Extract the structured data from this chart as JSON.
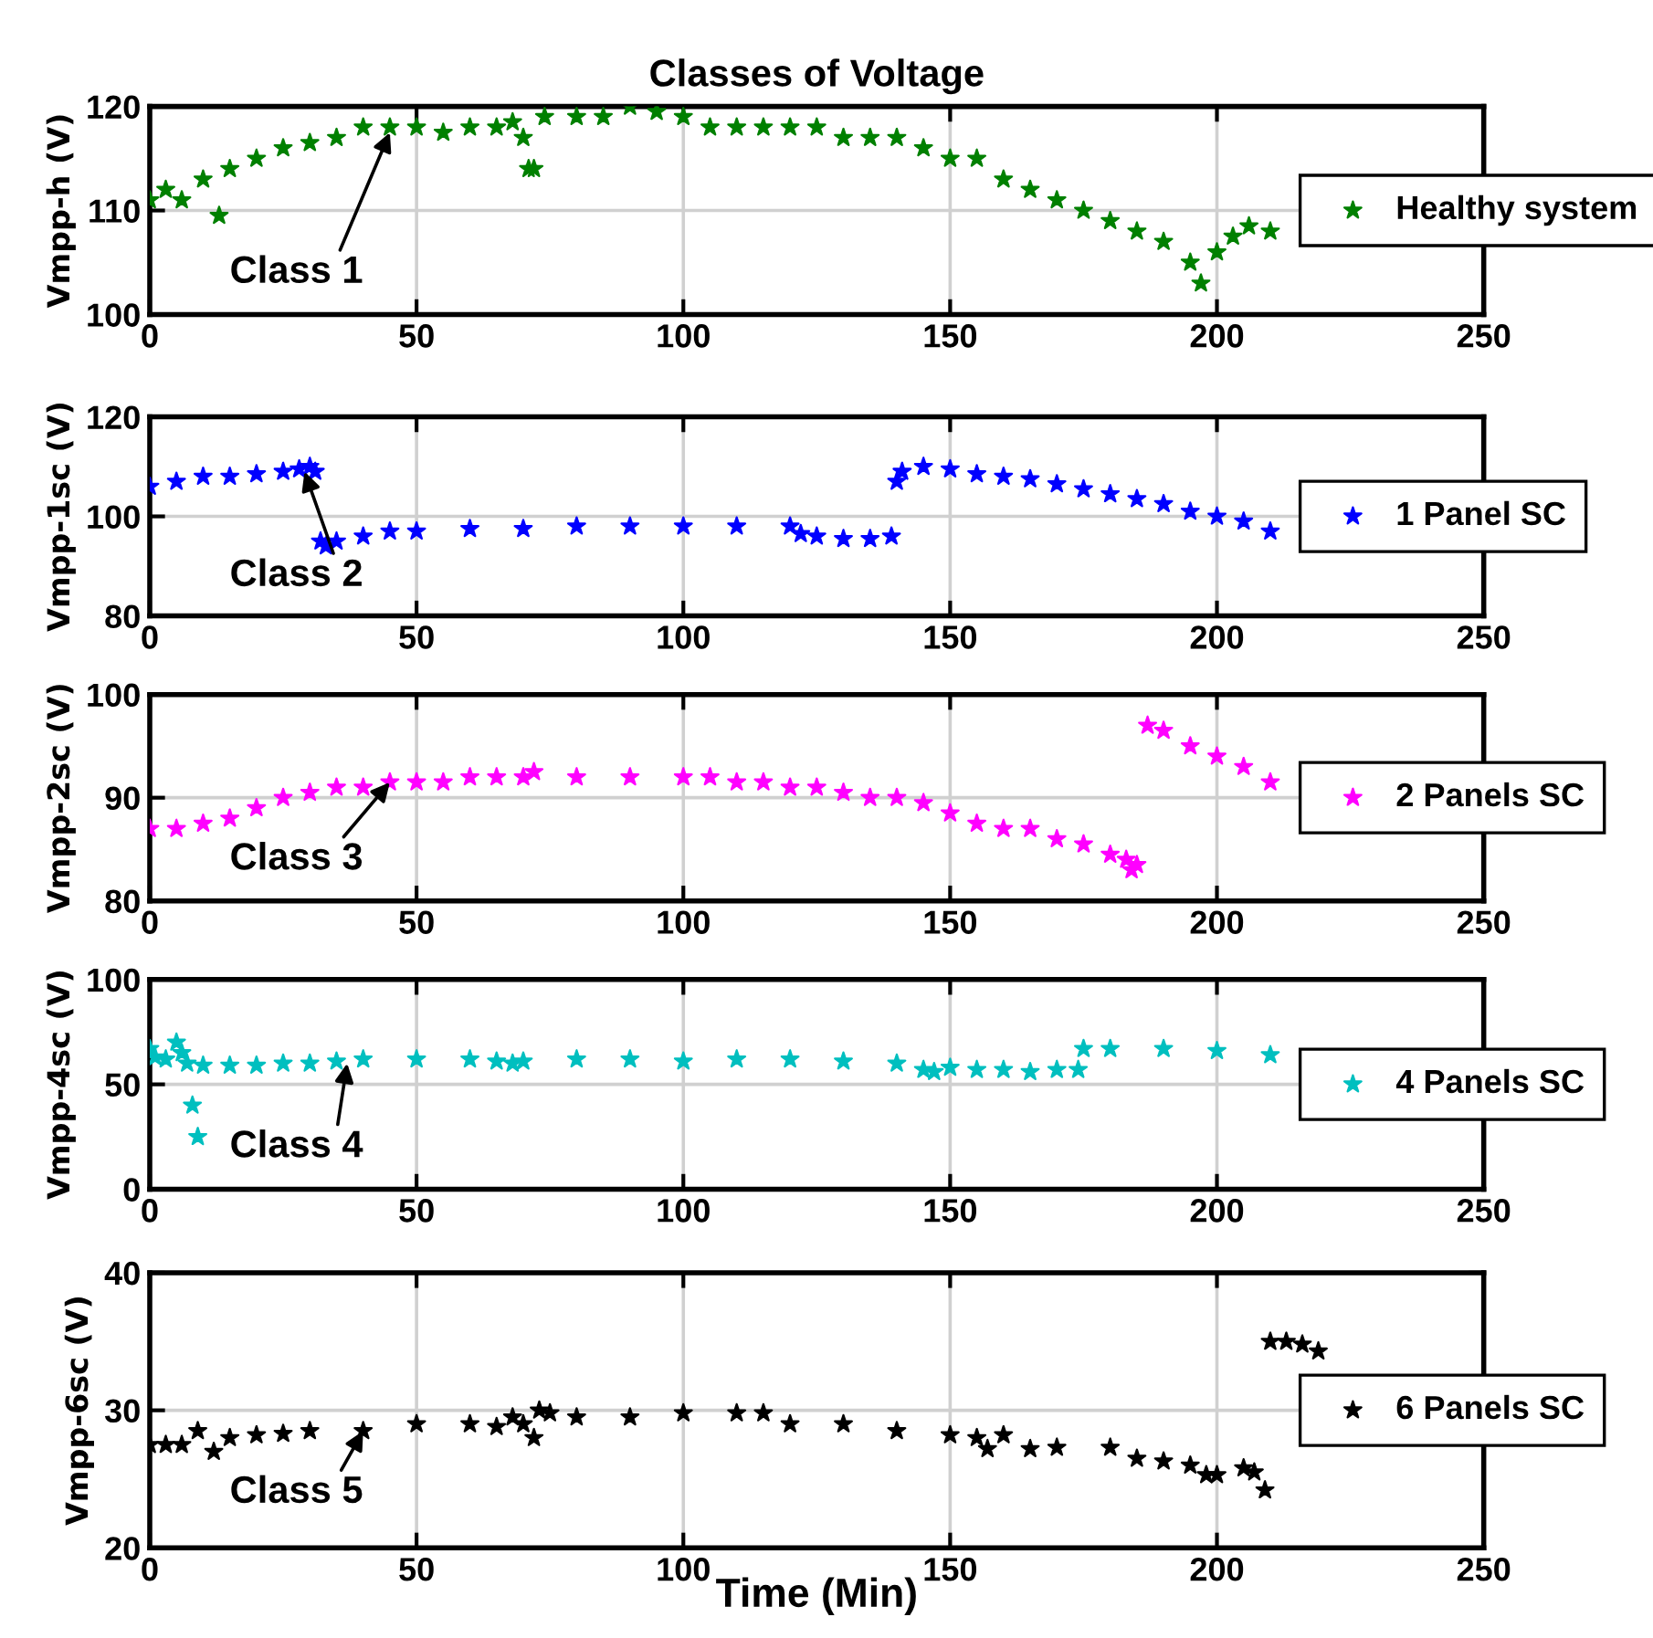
{
  "chart_data": [
    {
      "type": "scatter",
      "title": "Classes of Voltage",
      "ylabel": "Vmpp-h (V)",
      "xlim": [
        0,
        250
      ],
      "xticks": [
        0,
        50,
        100,
        150,
        200,
        250
      ],
      "ylim": [
        100,
        120
      ],
      "yticks": [
        100,
        110,
        120
      ],
      "grid": true,
      "legend": "right",
      "marker": "star",
      "series": [
        {
          "name": "Healthy system",
          "color": "#008000",
          "x": [
            0,
            3,
            6,
            10,
            13,
            15,
            20,
            25,
            30,
            35,
            40,
            45,
            50,
            55,
            60,
            65,
            68,
            70,
            71,
            72,
            74,
            80,
            85,
            90,
            95,
            100,
            105,
            110,
            115,
            120,
            125,
            130,
            135,
            140,
            145,
            150,
            155,
            160,
            165,
            170,
            175,
            180,
            185,
            190,
            195,
            197,
            200,
            203,
            206,
            210
          ],
          "values": [
            111,
            112,
            111,
            113,
            109.5,
            114,
            115,
            116,
            116.5,
            117,
            118,
            118,
            118,
            117.5,
            118,
            118,
            118.5,
            117,
            114,
            114,
            119,
            119,
            119,
            120,
            119.5,
            119,
            118,
            118,
            118,
            118,
            118,
            117,
            117,
            117,
            116,
            115,
            115,
            113,
            112,
            111,
            110,
            109,
            108,
            107,
            105,
            103,
            106,
            107.5,
            108.5,
            108
          ]
        }
      ],
      "annotations": [
        {
          "text": "Class 1",
          "x": 45,
          "y": 117.5
        }
      ]
    },
    {
      "type": "scatter",
      "ylabel": "Vmpp-1sc (V)",
      "xlim": [
        0,
        250
      ],
      "xticks": [
        0,
        50,
        100,
        150,
        200,
        250
      ],
      "ylim": [
        80,
        120
      ],
      "yticks": [
        80,
        100,
        120
      ],
      "grid": true,
      "legend": "right",
      "marker": "star",
      "series": [
        {
          "name": "1 Panel SC",
          "color": "#0000ff",
          "x": [
            0,
            5,
            10,
            15,
            20,
            25,
            28,
            30,
            31,
            32,
            33,
            35,
            40,
            45,
            50,
            60,
            70,
            80,
            90,
            100,
            110,
            120,
            122,
            125,
            130,
            135,
            139,
            140,
            141,
            145,
            150,
            155,
            160,
            165,
            170,
            175,
            180,
            185,
            190,
            195,
            200,
            205,
            210
          ],
          "values": [
            106,
            107,
            108,
            108,
            108.5,
            109,
            109.5,
            110,
            109,
            95,
            94,
            95,
            96,
            97,
            97,
            97.5,
            97.5,
            98,
            98,
            98,
            98,
            98,
            96.5,
            96,
            95.5,
            95.5,
            96,
            107,
            109,
            110,
            109.5,
            108.5,
            108,
            107.5,
            106.5,
            105.5,
            104.5,
            103.5,
            102.5,
            101,
            100,
            99,
            97
          ]
        }
      ],
      "annotations": [
        {
          "text": "Class 2",
          "x": 29,
          "y": 109
        }
      ]
    },
    {
      "type": "scatter",
      "ylabel": "Vmpp-2sc (V)",
      "xlim": [
        0,
        250
      ],
      "xticks": [
        0,
        50,
        100,
        150,
        200,
        250
      ],
      "ylim": [
        80,
        100
      ],
      "yticks": [
        80,
        90,
        100
      ],
      "grid": true,
      "legend": "right",
      "marker": "star",
      "series": [
        {
          "name": "2 Panels SC",
          "color": "#ff00ff",
          "x": [
            0,
            5,
            10,
            15,
            20,
            25,
            30,
            35,
            40,
            45,
            50,
            55,
            60,
            65,
            70,
            72,
            80,
            90,
            100,
            105,
            110,
            115,
            120,
            125,
            130,
            135,
            140,
            145,
            150,
            155,
            160,
            165,
            170,
            175,
            180,
            183,
            184,
            185,
            187,
            190,
            195,
            200,
            205,
            210
          ],
          "values": [
            87,
            87,
            87.5,
            88,
            89,
            90,
            90.5,
            91,
            91,
            91.5,
            91.5,
            91.5,
            92,
            92,
            92,
            92.5,
            92,
            92,
            92,
            92,
            91.5,
            91.5,
            91,
            91,
            90.5,
            90,
            90,
            89.5,
            88.5,
            87.5,
            87,
            87,
            86,
            85.5,
            84.5,
            84,
            83,
            83.5,
            97,
            96.5,
            95,
            94,
            93,
            91.5
          ]
        }
      ],
      "annotations": [
        {
          "text": "Class 3",
          "x": 45,
          "y": 91.5
        }
      ]
    },
    {
      "type": "scatter",
      "ylabel": "Vmpp-4sc (V)",
      "xlim": [
        0,
        250
      ],
      "xticks": [
        0,
        50,
        100,
        150,
        200,
        250
      ],
      "ylim": [
        0,
        100
      ],
      "yticks": [
        0,
        50,
        100
      ],
      "grid": true,
      "legend": "right",
      "marker": "star",
      "series": [
        {
          "name": "4 Panels SC",
          "color": "#00bfbf",
          "x": [
            0,
            1,
            3,
            5,
            6,
            7,
            8,
            9,
            10,
            15,
            20,
            25,
            30,
            35,
            40,
            50,
            60,
            65,
            68,
            70,
            80,
            90,
            100,
            110,
            120,
            130,
            140,
            145,
            147,
            150,
            155,
            160,
            165,
            170,
            174,
            175,
            180,
            190,
            200,
            210
          ],
          "values": [
            67,
            63,
            62,
            70,
            65,
            60,
            40,
            25,
            59,
            59,
            59,
            60,
            60,
            61,
            62,
            62,
            62,
            61,
            60,
            61,
            62,
            62,
            61,
            62,
            62,
            61,
            60,
            57,
            56,
            58,
            57,
            57,
            56,
            57,
            57,
            67,
            67,
            67,
            66,
            64
          ]
        }
      ],
      "annotations": [
        {
          "text": "Class 4",
          "x": 37,
          "y": 60
        }
      ]
    },
    {
      "type": "scatter",
      "ylabel": "Vmpp-6sc (V)",
      "xlabel": "Time (Min)",
      "xlim": [
        0,
        250
      ],
      "xticks": [
        0,
        50,
        100,
        150,
        200,
        250
      ],
      "ylim": [
        20,
        40
      ],
      "yticks": [
        20,
        30,
        40
      ],
      "grid": true,
      "legend": "right",
      "marker": "star",
      "series": [
        {
          "name": "6 Panels SC",
          "color": "#000000",
          "x": [
            0,
            3,
            6,
            9,
            12,
            15,
            20,
            25,
            30,
            40,
            50,
            60,
            65,
            68,
            70,
            72,
            73,
            75,
            80,
            90,
            100,
            110,
            115,
            120,
            130,
            140,
            150,
            155,
            157,
            160,
            165,
            170,
            180,
            185,
            190,
            195,
            198,
            200,
            205,
            207,
            209,
            210,
            213,
            216,
            219
          ],
          "values": [
            27.5,
            27.5,
            27.5,
            28.5,
            27,
            28,
            28.2,
            28.3,
            28.5,
            28.5,
            29,
            29,
            28.8,
            29.5,
            29,
            28,
            30,
            29.8,
            29.5,
            29.5,
            29.8,
            29.8,
            29.8,
            29,
            29,
            28.5,
            28.2,
            28,
            27.2,
            28.2,
            27.2,
            27.3,
            27.3,
            26.5,
            26.3,
            26,
            25.3,
            25.3,
            25.8,
            25.5,
            24.2,
            35,
            35,
            34.8,
            34.3
          ]
        }
      ],
      "annotations": [
        {
          "text": "Class 5",
          "x": 40,
          "y": 28.5
        }
      ]
    }
  ]
}
